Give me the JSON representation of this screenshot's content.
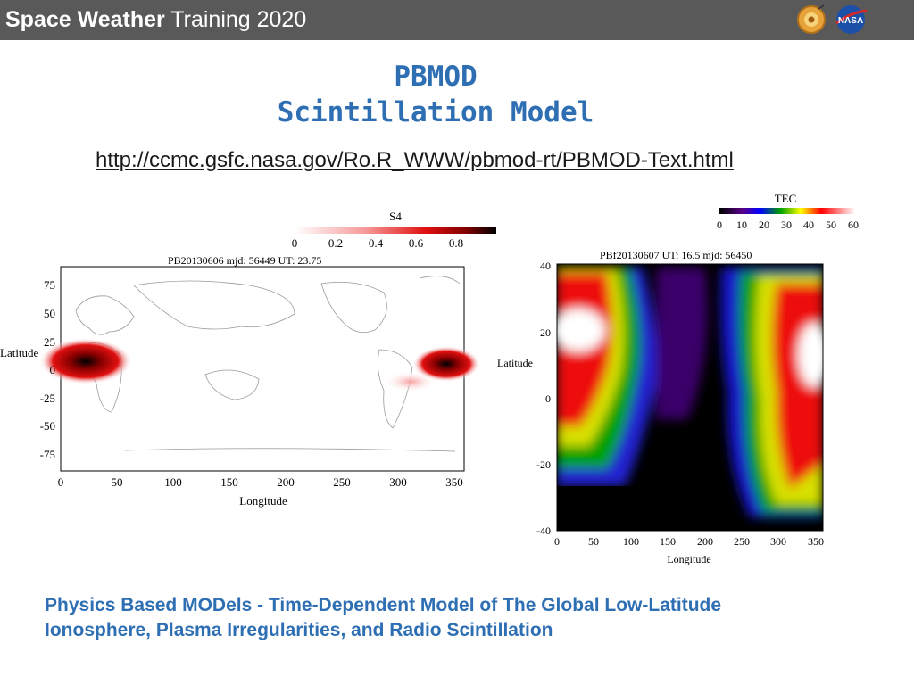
{
  "header": {
    "title_bold": "Space Weather",
    "title_rest": " Training 2020",
    "logos": [
      "ccmc-logo",
      "nasa-logo"
    ],
    "bar_color": "#595959"
  },
  "slide": {
    "title_line1": "PBMOD",
    "title_line2": "Scintillation Model",
    "url": "http://ccmc.gsfc.nasa.gov/Ro.R_WWW/pbmod-rt/PBMOD-Text.html",
    "caption_line1": "Physics Based MODels - Time-Dependent Model of The Global Low-Latitude",
    "caption_line2": "Ionosphere, Plasma Irregularities, and Radio Scintillation",
    "accent_color": "#2e6fb4"
  },
  "left_plot": {
    "colorbar_label": "S4",
    "colorbar_ticks": [
      "0",
      "0.2",
      "0.4",
      "0.6",
      "0.8"
    ],
    "header": "PB20130606  mjd: 56449  UT:  23.75",
    "ylabel": "Latitude",
    "xlabel": "Longitude",
    "yticks": [
      "75",
      "50",
      "25",
      "0",
      "-25",
      "-50",
      "-75"
    ],
    "xticks": [
      "0",
      "50",
      "100",
      "150",
      "200",
      "250",
      "300",
      "350"
    ]
  },
  "right_plot": {
    "colorbar_label": "TEC",
    "colorbar_ticks": [
      "0",
      "10",
      "20",
      "30",
      "40",
      "50",
      "60"
    ],
    "header": "PBf20130607  UT: 16.5  mjd: 56450",
    "ylabel": "Latitude",
    "xlabel": "Longitude",
    "yticks": [
      "40",
      "20",
      "0",
      "-20",
      "-40"
    ],
    "xticks": [
      "0",
      "50",
      "100",
      "150",
      "200",
      "250",
      "300",
      "350"
    ]
  }
}
